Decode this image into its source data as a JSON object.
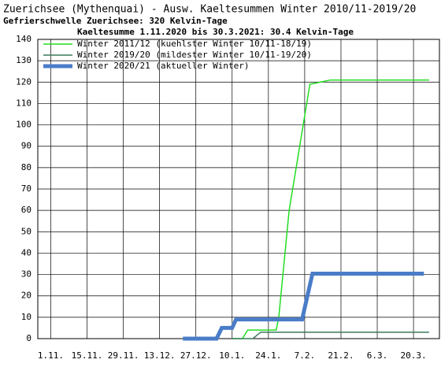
{
  "chart_data": {
    "type": "line",
    "title": "Zuerichsee (Mythenquai) - Ausw. Kaeltesummen Winter 2010/11-2019/20",
    "subtitle": "Gefrierschwelle Zuerichsee: 320 Kelvin-Tage",
    "annotation": "Kaeltesumme 1.11.2020 bis 30.3.2021: 30.4 Kelvin-Tage",
    "xlim": [
      -5,
      150
    ],
    "xticks": [
      {
        "value": 0,
        "label": "1.11."
      },
      {
        "value": 14,
        "label": "15.11."
      },
      {
        "value": 28,
        "label": "29.11."
      },
      {
        "value": 42,
        "label": "13.12."
      },
      {
        "value": 56,
        "label": "27.12."
      },
      {
        "value": 70,
        "label": "10.1."
      },
      {
        "value": 84,
        "label": "24.1."
      },
      {
        "value": 98,
        "label": "7.2."
      },
      {
        "value": 112,
        "label": "21.2."
      },
      {
        "value": 126,
        "label": "6.3."
      },
      {
        "value": 140,
        "label": "20.3."
      }
    ],
    "ylim": [
      0,
      140
    ],
    "yticks": [
      0,
      10,
      20,
      30,
      40,
      50,
      60,
      70,
      80,
      90,
      100,
      110,
      120,
      130,
      140
    ],
    "grid": true,
    "series": [
      {
        "name": "Winter 2011/12 (kuehlster Winter 10/11-18/19)",
        "color": "#22dd22",
        "width": 1.5,
        "x": [
          70,
          74,
          76,
          87,
          88,
          92,
          100,
          104,
          108,
          146
        ],
        "values": [
          0,
          0,
          4,
          4,
          10,
          60,
          119,
          120,
          121,
          121
        ]
      },
      {
        "name": "Winter 2019/20 (mildester Winter 10/11-19/20)",
        "color": "#3a7a5a",
        "width": 1.5,
        "x": [
          70,
          78,
          81,
          146
        ],
        "values": [
          0,
          0,
          3,
          3
        ]
      },
      {
        "name": "Winter 2020/21 (aktueller Winter)",
        "color": "#4a7cc8",
        "width": 5,
        "x": [
          51,
          64,
          66,
          70,
          71.5,
          97,
          101,
          144
        ],
        "values": [
          0,
          0,
          5,
          5,
          9,
          9,
          30.4,
          30.4
        ]
      }
    ]
  }
}
